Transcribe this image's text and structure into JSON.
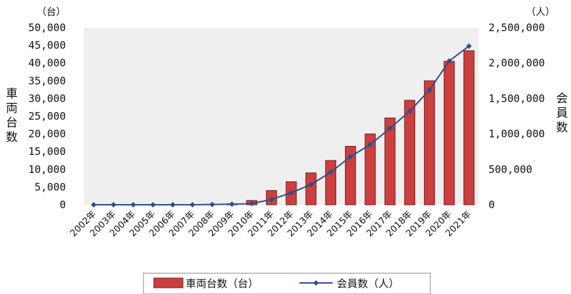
{
  "chart_data": {
    "type": "bar+line",
    "categories": [
      "2002年",
      "2003年",
      "2004年",
      "2005年",
      "2006年",
      "2007年",
      "2008年",
      "2009年",
      "2010年",
      "2011年",
      "2012年",
      "2013年",
      "2014年",
      "2015年",
      "2016年",
      "2017年",
      "2018年",
      "2019年",
      "2020年",
      "2021年"
    ],
    "series": [
      {
        "name": "車両台数（台）",
        "type": "bar",
        "axis": "left",
        "values": [
          0,
          0,
          0,
          0,
          0,
          50,
          150,
          300,
          1200,
          4000,
          6500,
          9000,
          12500,
          16500,
          20000,
          24500,
          29500,
          35000,
          40500,
          43500
        ]
      },
      {
        "name": "会員数（人）",
        "type": "line",
        "axis": "right",
        "values": [
          0,
          0,
          0,
          0,
          0,
          0,
          4000,
          9000,
          16000,
          75000,
          170000,
          285000,
          460000,
          680000,
          850000,
          1080000,
          1320000,
          1620000,
          2030000,
          2240000
        ]
      }
    ],
    "y_left": {
      "unit": "（台）",
      "title": "車両台数",
      "ylim": [
        0,
        50000
      ],
      "ticks": [
        "0",
        "5,000",
        "10,000",
        "15,000",
        "20,000",
        "25,000",
        "30,000",
        "35,000",
        "40,000",
        "45,000",
        "50,000"
      ]
    },
    "y_right": {
      "unit": "（人）",
      "title": "会員数",
      "ylim": [
        0,
        2500000
      ],
      "ticks": [
        "0",
        "500,000",
        "1,000,000",
        "1,500,000",
        "2,000,000",
        "2,500,000"
      ]
    },
    "legend": {
      "placement": "bottom"
    },
    "colors": {
      "bar": "#cc3f3f",
      "bar_border": "#7a1a1a",
      "line": "#2d4f8a",
      "plot_bg": "#efefef"
    },
    "grid": false
  }
}
